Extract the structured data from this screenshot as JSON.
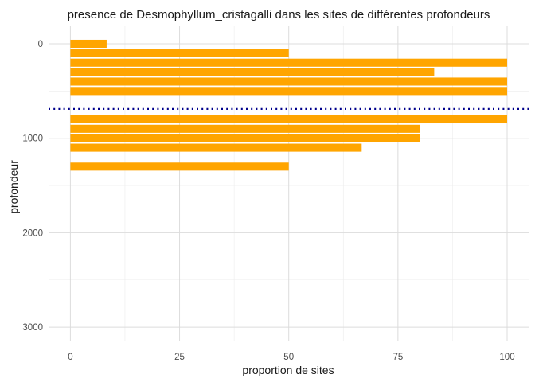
{
  "chart_data": {
    "type": "bar",
    "orientation": "horizontal",
    "title": "presence de Desmophyllum_cristagalli dans les sites de différentes profondeurs",
    "xlabel": "proportion de sites",
    "ylabel": "profondeur",
    "xlim": [
      0,
      100
    ],
    "ylim": [
      3100,
      -150
    ],
    "x_ticks": [
      0,
      25,
      50,
      75,
      100
    ],
    "y_ticks": [
      0,
      1000,
      2000,
      3000
    ],
    "bar_color": "#FFA500",
    "bar_height": 85,
    "bars": [
      {
        "depth": 0,
        "proportion": 8.3
      },
      {
        "depth": 100,
        "proportion": 50
      },
      {
        "depth": 200,
        "proportion": 100
      },
      {
        "depth": 300,
        "proportion": 83.3
      },
      {
        "depth": 400,
        "proportion": 100
      },
      {
        "depth": 500,
        "proportion": 100
      },
      {
        "depth": 800,
        "proportion": 100
      },
      {
        "depth": 900,
        "proportion": 80
      },
      {
        "depth": 1000,
        "proportion": 80
      },
      {
        "depth": 1100,
        "proportion": 66.7
      },
      {
        "depth": 1300,
        "proportion": 50
      }
    ],
    "reference_line": {
      "depth": 690,
      "color": "#00008B",
      "style": "dotted"
    },
    "grid": true
  }
}
